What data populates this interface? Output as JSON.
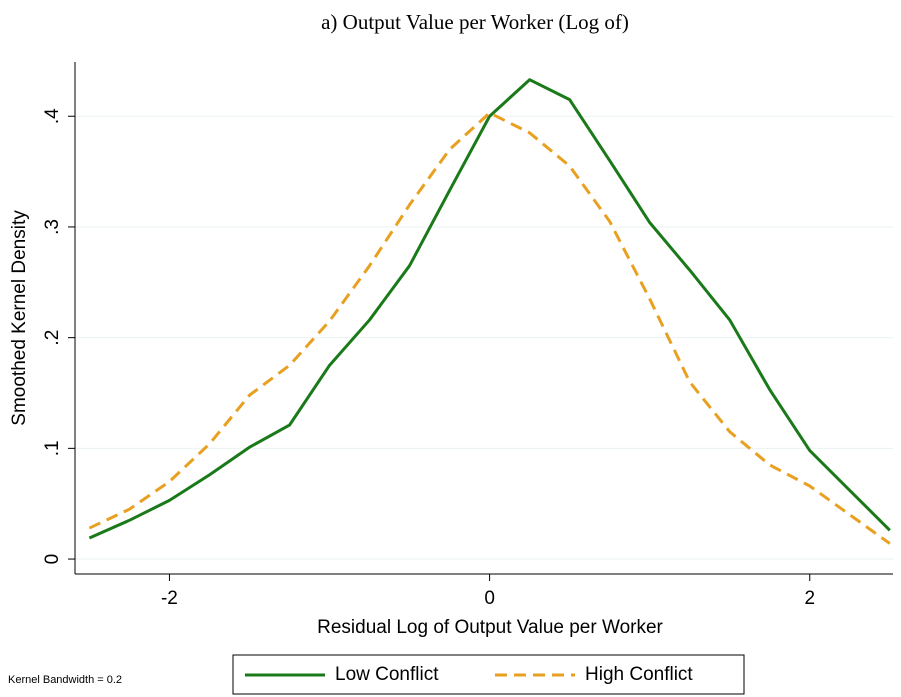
{
  "chart_data": {
    "type": "line",
    "title": "a) Output Value per Worker (Log of)",
    "xlabel": "Residual Log of Output Value per Worker",
    "ylabel": "Smoothed Kernel Density",
    "note": "Kernel Bandwidth = 0.2",
    "x": [
      -2.5,
      -2.25,
      -2.0,
      -1.75,
      -1.5,
      -1.25,
      -1.0,
      -0.75,
      -0.5,
      -0.25,
      0,
      0.25,
      0.5,
      0.75,
      1.0,
      1.25,
      1.5,
      1.75,
      2.0,
      2.25,
      2.5
    ],
    "series": [
      {
        "name": "Low Conflict",
        "color": "#1a7a1a",
        "dash": false,
        "values": [
          0.019,
          0.035,
          0.053,
          0.076,
          0.101,
          0.121,
          0.175,
          0.216,
          0.265,
          0.333,
          0.4,
          0.433,
          0.415,
          0.36,
          0.304,
          0.261,
          0.216,
          0.153,
          0.098,
          0.062,
          0.026
        ]
      },
      {
        "name": "High Conflict",
        "color": "#e8a020",
        "dash": true,
        "values": [
          0.028,
          0.045,
          0.07,
          0.104,
          0.148,
          0.175,
          0.215,
          0.265,
          0.32,
          0.37,
          0.403,
          0.385,
          0.355,
          0.305,
          0.235,
          0.16,
          0.115,
          0.085,
          0.066,
          0.04,
          0.014
        ]
      }
    ],
    "xlim": [
      -2.59,
      2.52
    ],
    "ylim": [
      -0.0135,
      0.449
    ],
    "xticks": [
      -2,
      0,
      2
    ],
    "yticks": [
      0,
      {
        "value": 0.1,
        "label": ".1"
      },
      {
        "value": 0.2,
        "label": ".2"
      },
      {
        "value": 0.3,
        "label": ".3"
      },
      {
        "value": 0.4,
        "label": ".4"
      }
    ],
    "grid": true,
    "legend": "bottom"
  }
}
